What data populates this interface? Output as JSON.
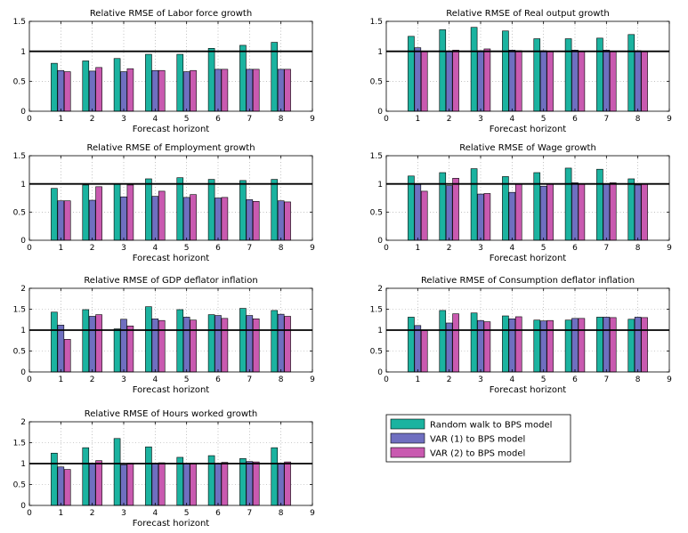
{
  "legend": [
    {
      "name": "Random walk to BPS model",
      "color": "#1bb3a0"
    },
    {
      "name": "VAR (1) to BPS model",
      "color": "#6f6fc0"
    },
    {
      "name": "VAR (2) to BPS model",
      "color": "#c95ab0"
    }
  ],
  "chart_data": [
    {
      "type": "bar",
      "title": "Relative RMSE of Labor force growth",
      "xlabel": "Forecast horizont",
      "categories": [
        "1",
        "2",
        "3",
        "4",
        "5",
        "6",
        "7",
        "8"
      ],
      "xticks": [
        "0",
        "1",
        "2",
        "3",
        "4",
        "5",
        "6",
        "7",
        "8",
        "9"
      ],
      "xlim": [
        0,
        9
      ],
      "ylim": [
        0,
        1.5
      ],
      "yticks": [
        "0",
        "0.5",
        "1",
        "1.5"
      ],
      "reference_line": 1,
      "grid": true,
      "series": [
        {
          "name": "Random walk to BPS model",
          "values": [
            0.8,
            0.84,
            0.88,
            0.95,
            0.95,
            1.05,
            1.1,
            1.15
          ]
        },
        {
          "name": "VAR (1) to BPS model",
          "values": [
            0.68,
            0.67,
            0.66,
            0.68,
            0.66,
            0.7,
            0.7,
            0.7
          ]
        },
        {
          "name": "VAR (2) to BPS model",
          "values": [
            0.66,
            0.73,
            0.71,
            0.68,
            0.68,
            0.7,
            0.7,
            0.7
          ]
        }
      ]
    },
    {
      "type": "bar",
      "title": "Relative RMSE of  Real output growth",
      "xlabel": "Forecast horizont",
      "categories": [
        "1",
        "2",
        "3",
        "4",
        "5",
        "6",
        "7",
        "8"
      ],
      "xticks": [
        "0",
        "1",
        "2",
        "3",
        "4",
        "5",
        "6",
        "7",
        "8",
        "9"
      ],
      "xlim": [
        0,
        9
      ],
      "ylim": [
        0,
        1.5
      ],
      "yticks": [
        "0",
        "0.5",
        "1",
        "1.5"
      ],
      "reference_line": 1,
      "grid": true,
      "series": [
        {
          "name": "Random walk to BPS model",
          "values": [
            1.25,
            1.36,
            1.4,
            1.34,
            1.21,
            1.21,
            1.22,
            1.28
          ]
        },
        {
          "name": "VAR (1) to BPS model",
          "values": [
            1.06,
            1.0,
            1.01,
            1.02,
            1.01,
            1.02,
            1.02,
            1.01
          ]
        },
        {
          "name": "VAR (2) to BPS model",
          "values": [
            1.0,
            1.02,
            1.04,
            1.01,
            1.0,
            1.0,
            1.0,
            1.0
          ]
        }
      ]
    },
    {
      "type": "bar",
      "title": "Relative RMSE of Employment growth",
      "xlabel": "Forecast horizont",
      "categories": [
        "1",
        "2",
        "3",
        "4",
        "5",
        "6",
        "7",
        "8"
      ],
      "xticks": [
        "0",
        "1",
        "2",
        "3",
        "4",
        "5",
        "6",
        "7",
        "8",
        "9"
      ],
      "xlim": [
        0,
        9
      ],
      "ylim": [
        0,
        1.5
      ],
      "yticks": [
        "0",
        "0.5",
        "1",
        "1.5"
      ],
      "reference_line": 1,
      "grid": true,
      "series": [
        {
          "name": "Random walk to BPS model",
          "values": [
            0.92,
            0.98,
            1.0,
            1.09,
            1.11,
            1.08,
            1.06,
            1.08
          ]
        },
        {
          "name": "VAR (1) to BPS model",
          "values": [
            0.7,
            0.71,
            0.77,
            0.78,
            0.76,
            0.75,
            0.72,
            0.7
          ]
        },
        {
          "name": "VAR (2) to BPS model",
          "values": [
            0.7,
            0.95,
            0.98,
            0.87,
            0.81,
            0.76,
            0.69,
            0.68
          ]
        }
      ]
    },
    {
      "type": "bar",
      "title": "Relative RMSE of Wage growth",
      "xlabel": "Forecast horizont",
      "categories": [
        "1",
        "2",
        "3",
        "4",
        "5",
        "6",
        "7",
        "8"
      ],
      "xticks": [
        "0",
        "1",
        "2",
        "3",
        "4",
        "5",
        "6",
        "7",
        "8",
        "9"
      ],
      "xlim": [
        0,
        9
      ],
      "ylim": [
        0,
        1.5
      ],
      "yticks": [
        "0",
        "0.5",
        "1",
        "1.5"
      ],
      "reference_line": 1,
      "grid": true,
      "series": [
        {
          "name": "Random walk to BPS model",
          "values": [
            1.14,
            1.2,
            1.27,
            1.13,
            1.2,
            1.28,
            1.26,
            1.09
          ]
        },
        {
          "name": "VAR (1) to BPS model",
          "values": [
            0.99,
            0.97,
            0.82,
            0.85,
            0.96,
            1.02,
            1.0,
            0.98
          ]
        },
        {
          "name": "VAR (2) to BPS model",
          "values": [
            0.87,
            1.1,
            0.83,
            1.0,
            1.0,
            1.0,
            1.02,
            1.0
          ]
        }
      ]
    },
    {
      "type": "bar",
      "title": "Relative RMSE of GDP deflator inflation",
      "xlabel": "Forecast horizont",
      "categories": [
        "1",
        "2",
        "3",
        "4",
        "5",
        "6",
        "7",
        "8"
      ],
      "xticks": [
        "0",
        "1",
        "2",
        "3",
        "4",
        "5",
        "6",
        "7",
        "8",
        "9"
      ],
      "xlim": [
        0,
        9
      ],
      "ylim": [
        0,
        2
      ],
      "yticks": [
        "0",
        "0.5",
        "1",
        "1.5",
        "2"
      ],
      "reference_line": 1,
      "grid": true,
      "series": [
        {
          "name": "Random walk to BPS model",
          "values": [
            1.43,
            1.49,
            1.03,
            1.56,
            1.49,
            1.37,
            1.52,
            1.47
          ]
        },
        {
          "name": "VAR (1) to BPS model",
          "values": [
            1.12,
            1.33,
            1.26,
            1.27,
            1.31,
            1.35,
            1.35,
            1.38
          ]
        },
        {
          "name": "VAR (2) to BPS model",
          "values": [
            0.78,
            1.37,
            1.1,
            1.23,
            1.24,
            1.28,
            1.27,
            1.33
          ]
        }
      ]
    },
    {
      "type": "bar",
      "title": "Relative RMSE of Consumption deflator inflation",
      "xlabel": "Forecast horizont",
      "categories": [
        "1",
        "2",
        "3",
        "4",
        "5",
        "6",
        "7",
        "8"
      ],
      "xticks": [
        "0",
        "1",
        "2",
        "3",
        "4",
        "5",
        "6",
        "7",
        "8",
        "9"
      ],
      "xlim": [
        0,
        9
      ],
      "ylim": [
        0,
        2
      ],
      "yticks": [
        "0",
        "0.5",
        "1",
        "1.5",
        "2"
      ],
      "reference_line": 1,
      "grid": true,
      "series": [
        {
          "name": "Random walk to BPS model",
          "values": [
            1.31,
            1.47,
            1.41,
            1.34,
            1.24,
            1.24,
            1.31,
            1.26
          ]
        },
        {
          "name": "VAR (1) to BPS model",
          "values": [
            1.11,
            1.17,
            1.23,
            1.27,
            1.22,
            1.28,
            1.31,
            1.31
          ]
        },
        {
          "name": "VAR (2) to BPS model",
          "values": [
            0.99,
            1.39,
            1.2,
            1.32,
            1.23,
            1.28,
            1.3,
            1.3
          ]
        }
      ]
    },
    {
      "type": "bar",
      "title": "Relative RMSE of Hours worked growth",
      "xlabel": "Forecast horizont",
      "categories": [
        "1",
        "2",
        "3",
        "4",
        "5",
        "6",
        "7",
        "8"
      ],
      "xticks": [
        "0",
        "1",
        "2",
        "3",
        "4",
        "5",
        "6",
        "7",
        "8",
        "9"
      ],
      "xlim": [
        0,
        9
      ],
      "ylim": [
        0,
        2
      ],
      "yticks": [
        "0",
        "0.5",
        "1",
        "1.5",
        "2"
      ],
      "reference_line": 1,
      "grid": true,
      "series": [
        {
          "name": "Random walk to BPS model",
          "values": [
            1.25,
            1.38,
            1.6,
            1.4,
            1.15,
            1.19,
            1.12,
            1.38
          ]
        },
        {
          "name": "VAR (1) to BPS model",
          "values": [
            0.92,
            1.01,
            0.97,
            1.01,
            1.0,
            1.0,
            1.05,
            1.01
          ]
        },
        {
          "name": "VAR (2) to BPS model",
          "values": [
            0.86,
            1.07,
            1.01,
            1.02,
            1.01,
            1.03,
            1.04,
            1.04
          ]
        }
      ]
    }
  ]
}
